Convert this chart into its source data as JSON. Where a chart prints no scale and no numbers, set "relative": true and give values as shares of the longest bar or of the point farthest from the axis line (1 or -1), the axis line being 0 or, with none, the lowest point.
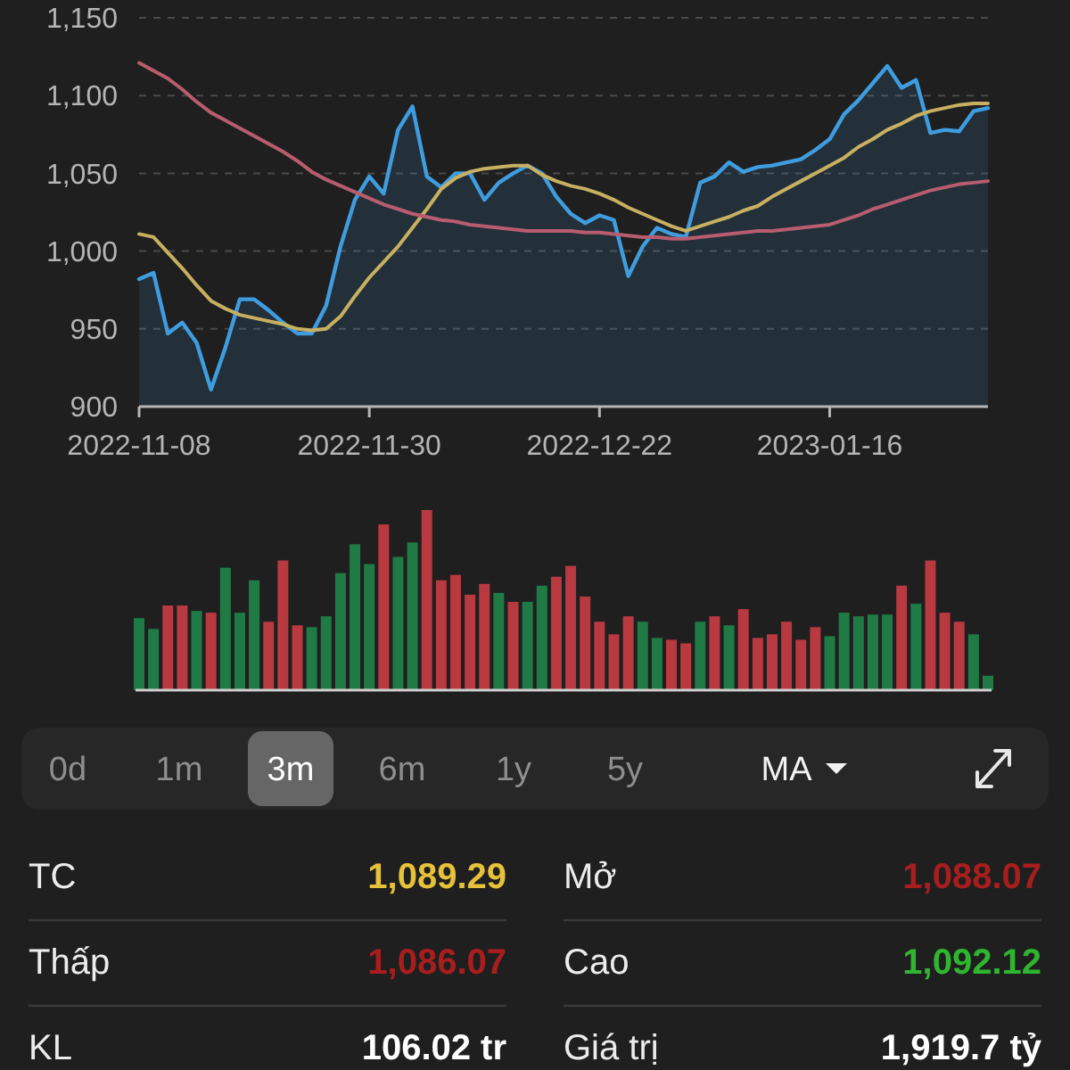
{
  "chart_data": [
    {
      "type": "line",
      "categories": [
        "2022-11-08",
        null,
        null,
        null,
        null,
        null,
        null,
        null,
        null,
        null,
        null,
        null,
        null,
        null,
        null,
        null,
        "2022-11-30",
        null,
        null,
        null,
        null,
        null,
        null,
        null,
        null,
        null,
        null,
        null,
        null,
        null,
        null,
        null,
        "2022-12-22",
        null,
        null,
        null,
        null,
        null,
        null,
        null,
        null,
        null,
        null,
        null,
        null,
        null,
        null,
        null,
        "2023-01-16",
        null,
        null,
        null,
        null,
        null,
        null,
        null,
        null,
        null,
        null,
        null
      ],
      "ylim": [
        900,
        1150
      ],
      "yticks": [
        900,
        950,
        {
          "value": 1000,
          "label": "1,000"
        },
        {
          "value": 1050,
          "label": "1,050"
        },
        {
          "value": 1100,
          "label": "1,100"
        },
        {
          "value": 1150,
          "label": "1,150"
        }
      ],
      "grid": "y",
      "series": [
        {
          "type": "area",
          "color": "#3f9ddf",
          "values": [
            982,
            986,
            947,
            954,
            941,
            911,
            938,
            969,
            969,
            962,
            954,
            947,
            947,
            965,
            1003,
            1033,
            1048,
            1037,
            1078,
            1093,
            1048,
            1041,
            1050,
            1050,
            1033,
            1044,
            1050,
            1055,
            1050,
            1035,
            1024,
            1018,
            1023,
            1020,
            984,
            1003,
            1015,
            1011,
            1009,
            1044,
            1048,
            1057,
            1051,
            1054,
            1055,
            1057,
            1059,
            1065,
            1072,
            1088,
            1097,
            1108,
            1119,
            1105,
            1110,
            1076,
            1078,
            1077,
            1090,
            1092
          ]
        },
        {
          "type": "line",
          "color": "#c8b062",
          "values": [
            1011,
            1009,
            999,
            989,
            978,
            968,
            963,
            959,
            957,
            955,
            953,
            950,
            949,
            950,
            958,
            971,
            983,
            993,
            1003,
            1015,
            1027,
            1040,
            1047,
            1051,
            1053,
            1054,
            1055,
            1055,
            1049,
            1045,
            1042,
            1040,
            1037,
            1033,
            1028,
            1024,
            1020,
            1016,
            1013,
            1016,
            1019,
            1022,
            1026,
            1029,
            1035,
            1040,
            1045,
            1050,
            1055,
            1060,
            1067,
            1072,
            1078,
            1082,
            1087,
            1090,
            1092,
            1094,
            1095,
            1095
          ]
        },
        {
          "type": "line",
          "color": "#b85c70",
          "values": [
            1121,
            1116,
            1111,
            1104,
            1096,
            1089,
            1084,
            1079,
            1074,
            1069,
            1064,
            1058,
            1051,
            1046,
            1042,
            1038,
            1034,
            1030,
            1027,
            1024,
            1022,
            1020,
            1019,
            1017,
            1016,
            1015,
            1014,
            1013,
            1013,
            1013,
            1013,
            1012,
            1012,
            1011,
            1010,
            1009,
            1009,
            1008,
            1008,
            1009,
            1010,
            1011,
            1012,
            1013,
            1013,
            1014,
            1015,
            1016,
            1017,
            1020,
            1023,
            1027,
            1030,
            1033,
            1036,
            1039,
            1041,
            1043,
            1044,
            1045
          ]
        }
      ]
    },
    {
      "type": "bar",
      "relative": true,
      "categories": [
        null,
        null,
        null,
        null,
        null,
        null,
        null,
        null,
        null,
        null,
        null,
        null,
        null,
        null,
        null,
        null,
        null,
        null,
        null,
        null,
        null,
        null,
        null,
        null,
        null,
        null,
        null,
        null,
        null,
        null,
        null,
        null,
        null,
        null,
        null,
        null,
        null,
        null,
        null,
        null,
        null,
        null,
        null,
        null,
        null,
        null,
        null,
        null,
        null,
        null,
        null,
        null,
        null,
        null,
        null,
        null,
        null,
        null,
        null,
        null
      ],
      "values": [
        0.4,
        0.34,
        0.47,
        0.47,
        0.44,
        0.43,
        0.68,
        0.43,
        0.61,
        0.38,
        0.72,
        0.36,
        0.35,
        0.41,
        0.65,
        0.81,
        0.7,
        0.92,
        0.74,
        0.82,
        1,
        0.61,
        0.64,
        0.53,
        0.59,
        0.54,
        0.49,
        0.49,
        0.58,
        0.63,
        0.69,
        0.52,
        0.38,
        0.31,
        0.41,
        0.38,
        0.29,
        0.28,
        0.26,
        0.38,
        0.41,
        0.36,
        0.45,
        0.29,
        0.31,
        0.38,
        0.28,
        0.35,
        0.3,
        0.43,
        0.41,
        0.42,
        0.42,
        0.58,
        0.48,
        0.72,
        0.43,
        0.38,
        0.31,
        0.08
      ],
      "colors": [
        "#1f7a45",
        "#1f7a45",
        "#b8393f",
        "#b8393f",
        "#1f7a45",
        "#b8393f",
        "#1f7a45",
        "#1f7a45",
        "#1f7a45",
        "#b8393f",
        "#b8393f",
        "#b8393f",
        "#1f7a45",
        "#1f7a45",
        "#1f7a45",
        "#1f7a45",
        "#1f7a45",
        "#b8393f",
        "#1f7a45",
        "#1f7a45",
        "#b8393f",
        "#b8393f",
        "#b8393f",
        "#b8393f",
        "#b8393f",
        "#1f7a45",
        "#b8393f",
        "#1f7a45",
        "#1f7a45",
        "#b8393f",
        "#b8393f",
        "#b8393f",
        "#b8393f",
        "#b8393f",
        "#b8393f",
        "#1f7a45",
        "#1f7a45",
        "#b8393f",
        "#b8393f",
        "#1f7a45",
        "#b8393f",
        "#1f7a45",
        "#b8393f",
        "#b8393f",
        "#b8393f",
        "#b8393f",
        "#b8393f",
        "#b8393f",
        "#1f7a45",
        "#1f7a45",
        "#1f7a45",
        "#1f7a45",
        "#1f7a45",
        "#b8393f",
        "#1f7a45",
        "#b8393f",
        "#b8393f",
        "#b8393f",
        "#1f7a45",
        "#1f7a45"
      ]
    },
    {
      "type": "other",
      "annotations": [
        "0d",
        "1m",
        "3m",
        "6m",
        "1y",
        "5y",
        "MA"
      ]
    },
    {
      "type": "other",
      "categories": [
        "TC",
        "Mở",
        "Thấp",
        "Cao",
        "KL",
        "Giá trị"
      ],
      "value_labels": [
        "1,089.29",
        "1,088.07",
        "1,086.07",
        "1,092.12",
        "106.02 tr",
        "1,919.7 tỷ"
      ],
      "colors": [
        "#e6c13a",
        "#a81e1e",
        "#a81e1e",
        "#2fb52f",
        "#ffffff",
        "#ffffff"
      ]
    }
  ]
}
